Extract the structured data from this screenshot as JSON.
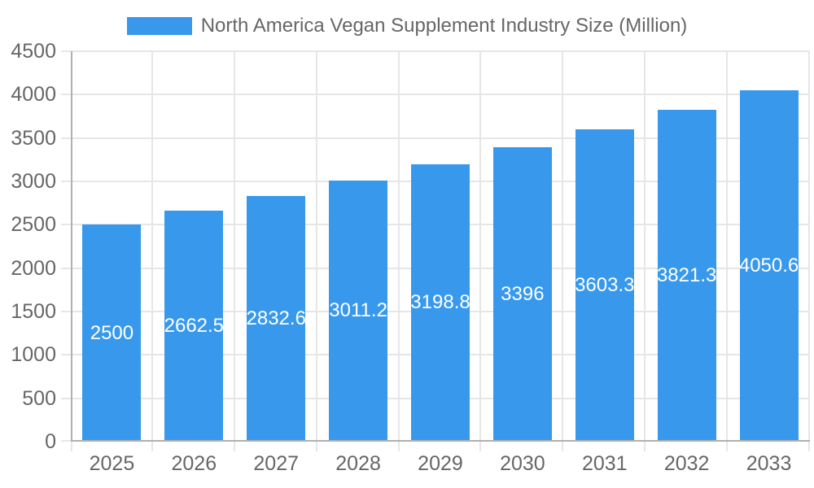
{
  "legend": {
    "label": "North America Vegan Supplement Industry Size (Million)"
  },
  "chart_data": {
    "type": "bar",
    "title": "North America Vegan Supplement Industry Size (Million)",
    "categories": [
      "2025",
      "2026",
      "2027",
      "2028",
      "2029",
      "2030",
      "2031",
      "2032",
      "2033"
    ],
    "values": [
      2500,
      2662.5,
      2832.6,
      3011.2,
      3198.8,
      3396,
      3603.3,
      3821.3,
      4050.6
    ],
    "value_labels": [
      "2500",
      "2662.5",
      "2832.6",
      "3011.2",
      "3198.8",
      "3396",
      "3603.3",
      "3821.3",
      "4050.6"
    ],
    "xlabel": "",
    "ylabel": "",
    "ylim": [
      0,
      4500
    ],
    "ytick_step": 500,
    "yticks": [
      0,
      500,
      1000,
      1500,
      2000,
      2500,
      3000,
      3500,
      4000,
      4500
    ],
    "grid": true,
    "legend_position": "top",
    "colors": {
      "bar": "#3899ec",
      "grid": "#e6e6e6",
      "axis": "#b0b0b0",
      "text": "#666666",
      "value_label": "#ffffff",
      "background": "#ffffff"
    }
  }
}
